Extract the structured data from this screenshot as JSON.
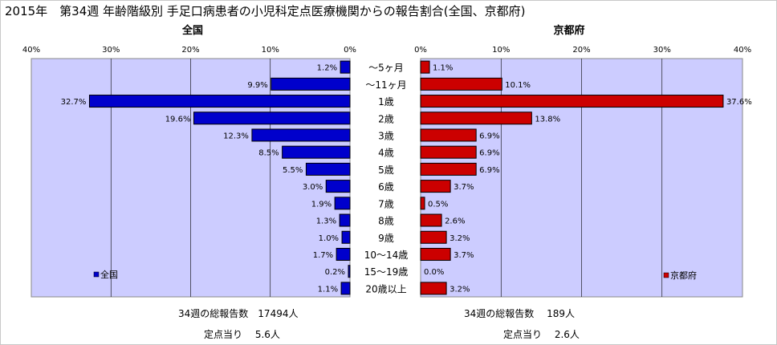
{
  "title": "2015年　第34週 年齢階級別 手足口病患者の小児科定点医療機関からの報告割合(全国、京都府)",
  "chart_data": [
    {
      "type": "bar",
      "orientation": "horizontal",
      "direction": "right-to-left",
      "title": "全国",
      "categories": [
        "～5ヶ月",
        "～11ヶ月",
        "1歳",
        "2歳",
        "3歳",
        "4歳",
        "5歳",
        "6歳",
        "7歳",
        "8歳",
        "9歳",
        "10～14歳",
        "15～19歳",
        "20歳以上"
      ],
      "series": [
        {
          "name": "全国",
          "color": "#0000CC",
          "values": [
            1.2,
            9.9,
            32.7,
            19.6,
            12.3,
            8.5,
            5.5,
            3.0,
            1.9,
            1.3,
            1.0,
            1.7,
            0.2,
            1.1
          ],
          "labels": [
            "1.2%",
            "9.9%",
            "32.7%",
            "19.6%",
            "12.3%",
            "8.5%",
            "5.5%",
            "3.0%",
            "1.9%",
            "1.3%",
            "1.0%",
            "1.7%",
            "0.2%",
            "1.1%"
          ]
        }
      ],
      "xlim": [
        0,
        40
      ],
      "xticks": [
        "40%",
        "30%",
        "20%",
        "10%",
        "0%"
      ],
      "grid": true,
      "legend": "bottom-left",
      "plot_bg": "#CCCCFF"
    },
    {
      "type": "bar",
      "orientation": "horizontal",
      "direction": "left-to-right",
      "title": "京都府",
      "categories": [
        "～5ヶ月",
        "～11ヶ月",
        "1歳",
        "2歳",
        "3歳",
        "4歳",
        "5歳",
        "6歳",
        "7歳",
        "8歳",
        "9歳",
        "10～14歳",
        "15～19歳",
        "20歳以上"
      ],
      "series": [
        {
          "name": "京都府",
          "color": "#CC0000",
          "values": [
            1.1,
            10.1,
            37.6,
            13.8,
            6.9,
            6.9,
            6.9,
            3.7,
            0.5,
            2.6,
            3.2,
            3.7,
            0.0,
            3.2
          ],
          "labels": [
            "1.1%",
            "10.1%",
            "37.6%",
            "13.8%",
            "6.9%",
            "6.9%",
            "6.9%",
            "3.7%",
            "0.5%",
            "2.6%",
            "3.2%",
            "3.7%",
            "0.0%",
            "3.2%"
          ]
        }
      ],
      "xlim": [
        0,
        40
      ],
      "xticks": [
        "0%",
        "10%",
        "20%",
        "30%",
        "40%"
      ],
      "grid": true,
      "legend": "bottom-right",
      "plot_bg": "#CCCCFF"
    }
  ],
  "summary": {
    "national": {
      "total_label": "34週の総報告数",
      "total_value": "17494人",
      "per_label": "定点当り",
      "per_value": "5.6人"
    },
    "kyoto": {
      "total_label": "34週の総報告数",
      "total_value": "189人",
      "per_label": "定点当り",
      "per_value": "2.6人"
    }
  }
}
